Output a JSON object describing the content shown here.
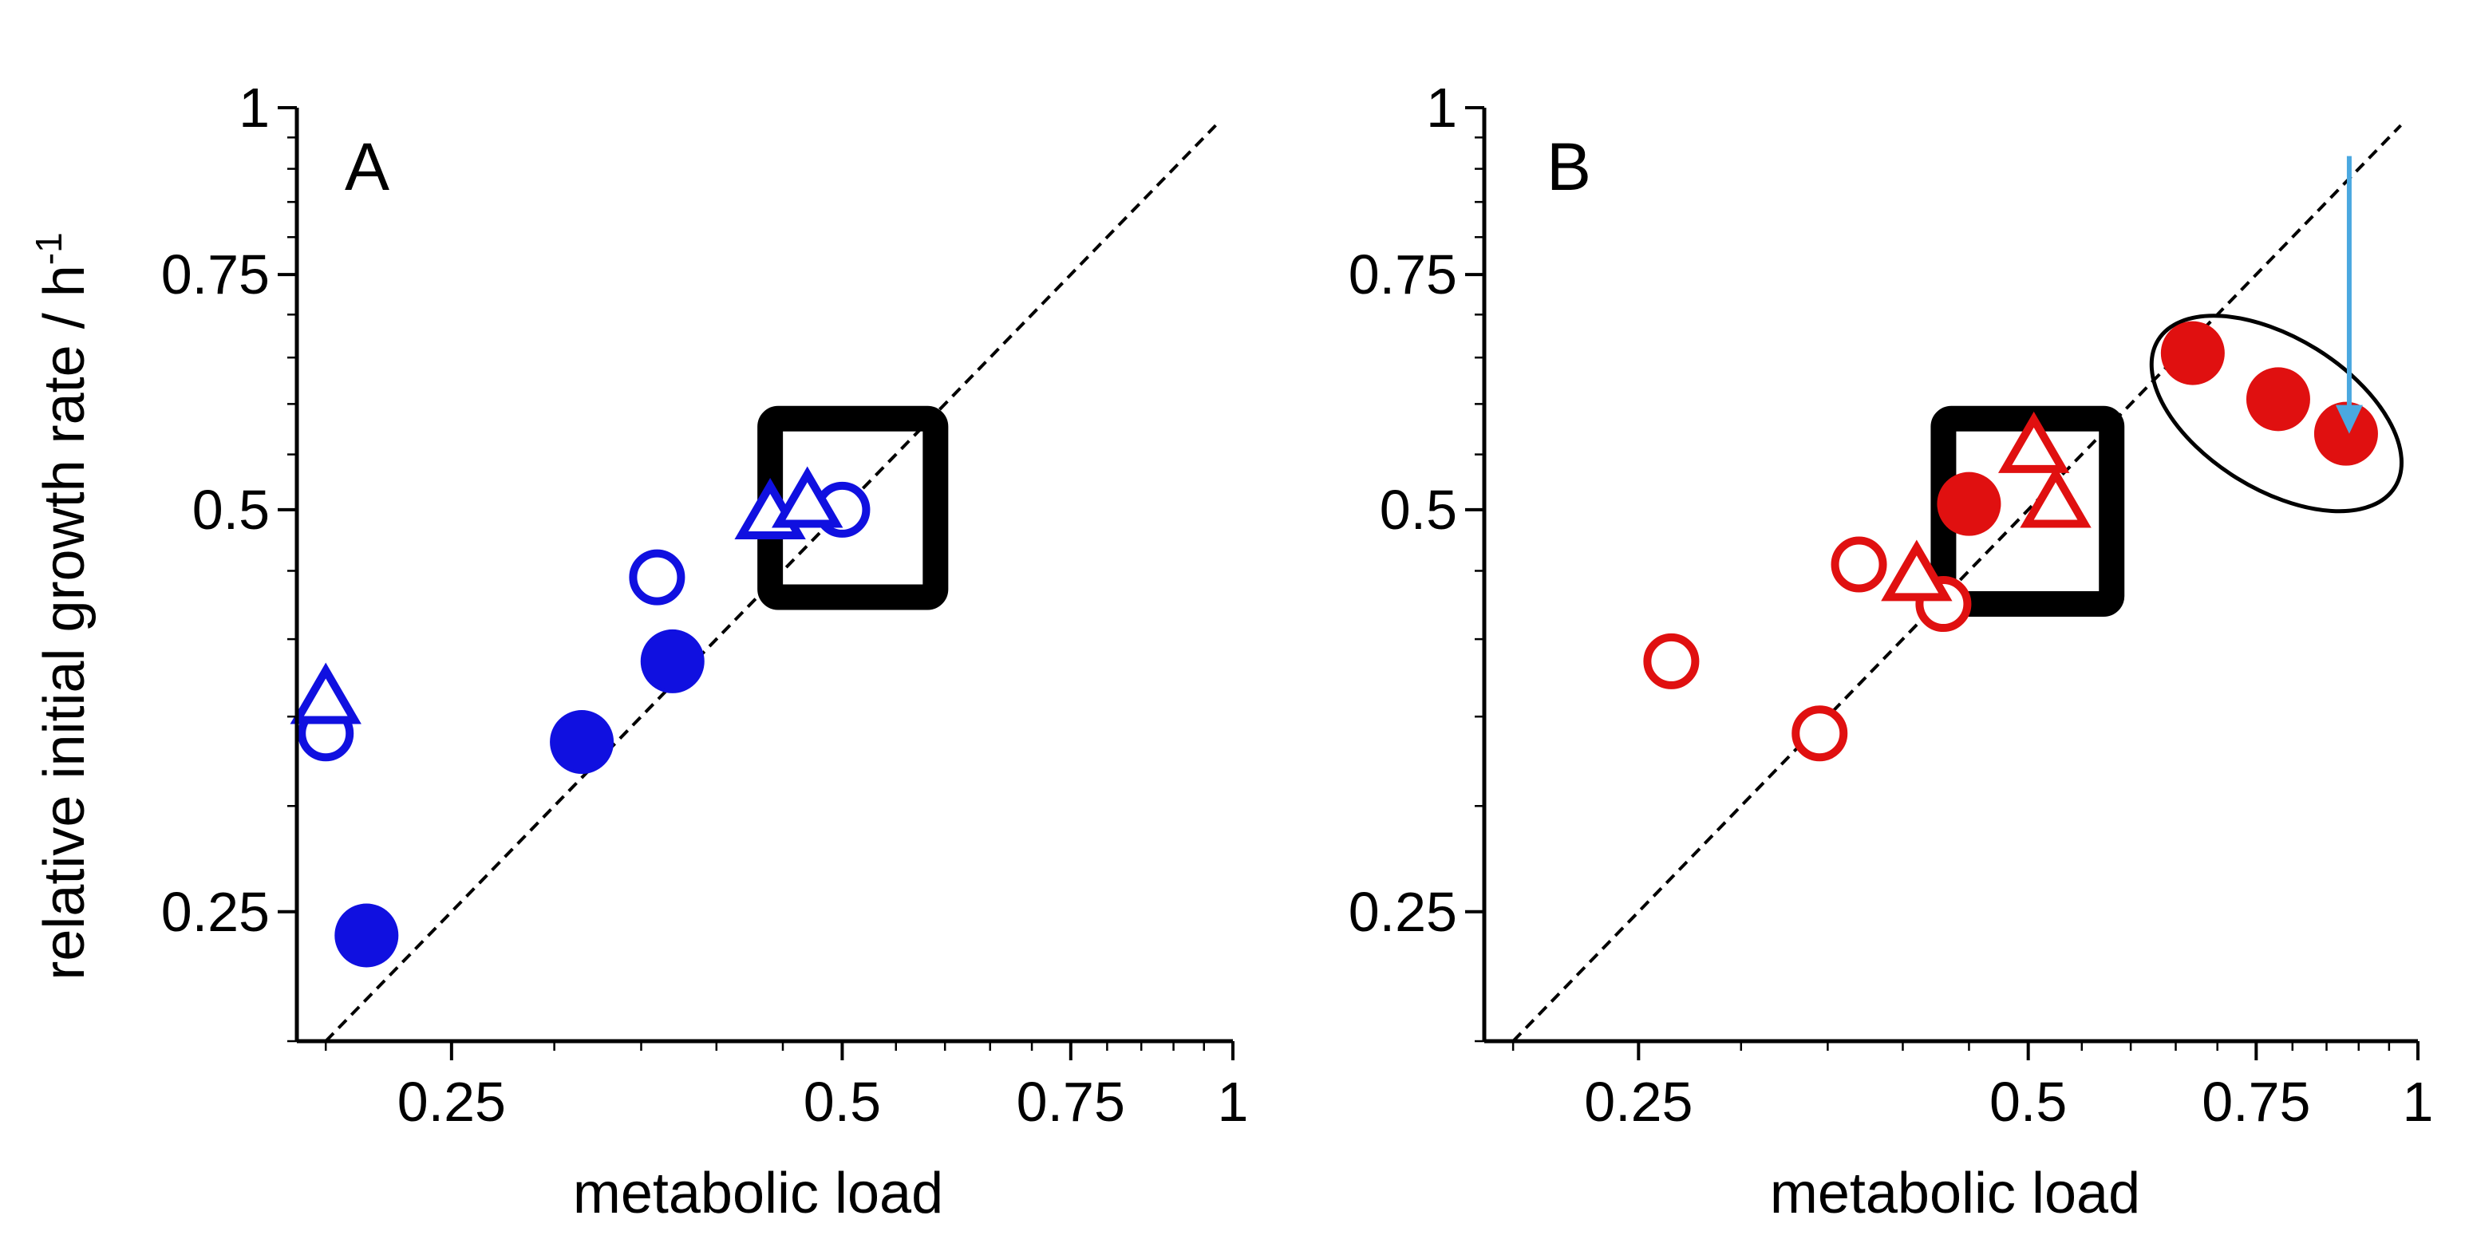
{
  "chart_data": [
    {
      "type": "scatter",
      "panel_label": "A",
      "xlabel": "metabolic load",
      "ylabel": "relative initial growth rate / h",
      "ylabel_superscript": "-1",
      "x_scale": "log",
      "y_scale": "log",
      "xlim": [
        0.19,
        1.0
      ],
      "ylim": [
        0.2,
        1.0
      ],
      "x_ticks": [
        "0.25",
        "0.5",
        "0.75",
        "1"
      ],
      "y_ticks": [
        "0.25",
        "0.5",
        "0.75",
        "1"
      ],
      "diagonal": "y = x (dashed)",
      "marker_color": "#1010e0",
      "series": [
        {
          "marker": "filled-circle",
          "points": [
            [
              0.215,
              0.24
            ],
            [
              0.315,
              0.335
            ],
            [
              0.37,
              0.385
            ]
          ]
        },
        {
          "marker": "open-circle",
          "points": [
            [
              0.2,
              0.34
            ],
            [
              0.36,
              0.445
            ],
            [
              0.5,
              0.5
            ]
          ]
        },
        {
          "marker": "open-triangle",
          "points": [
            [
              0.2,
              0.36
            ],
            [
              0.44,
              0.495
            ],
            [
              0.47,
              0.505
            ]
          ]
        }
      ],
      "highlight_box": {
        "x": [
          0.44,
          0.59
        ],
        "y": [
          0.43,
          0.585
        ]
      }
    },
    {
      "type": "scatter",
      "panel_label": "B",
      "xlabel": "metabolic load",
      "ylabel": "",
      "x_scale": "log",
      "y_scale": "log",
      "xlim": [
        0.19,
        1.0
      ],
      "ylim": [
        0.2,
        1.0
      ],
      "x_ticks": [
        "0.25",
        "0.5",
        "0.75",
        "1"
      ],
      "y_ticks": [
        "0.25",
        "0.5",
        "0.75",
        "1"
      ],
      "diagonal": "y = x (dashed)",
      "marker_color": "#e01010",
      "series": [
        {
          "marker": "filled-circle",
          "points": [
            [
              0.45,
              0.505
            ],
            [
              0.67,
              0.655
            ],
            [
              0.78,
              0.605
            ],
            [
              0.88,
              0.57
            ]
          ]
        },
        {
          "marker": "open-circle",
          "points": [
            [
              0.265,
              0.385
            ],
            [
              0.345,
              0.34
            ],
            [
              0.37,
              0.455
            ],
            [
              0.43,
              0.425
            ]
          ]
        },
        {
          "marker": "open-triangle",
          "points": [
            [
              0.41,
              0.445
            ],
            [
              0.505,
              0.555
            ],
            [
              0.525,
              0.505
            ]
          ]
        }
      ],
      "highlight_box": {
        "x": [
          0.43,
          0.58
        ],
        "y": [
          0.425,
          0.585
        ]
      },
      "ellipse": {
        "from": [
          0.63,
          0.67
        ],
        "to": [
          0.96,
          0.52
        ]
      },
      "arrow": {
        "x": 0.885,
        "from_y": 0.92,
        "to_y": 0.57,
        "color": "#4aa8e0"
      }
    }
  ]
}
